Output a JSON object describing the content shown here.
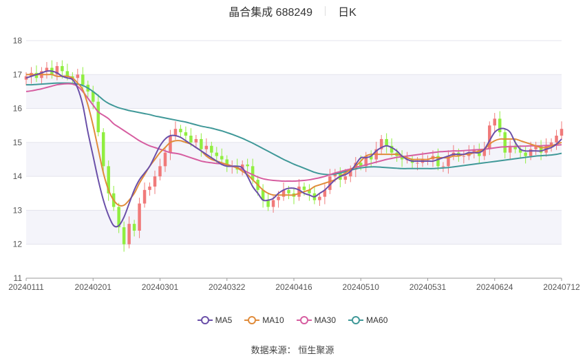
{
  "header": {
    "name": "晶合集成 688249",
    "period": "日K"
  },
  "source_label": "数据来源：",
  "source_value": "恒生聚源",
  "legend": [
    {
      "label": "MA5",
      "color": "#6a4fa8"
    },
    {
      "label": "MA10",
      "color": "#e08b3a"
    },
    {
      "label": "MA30",
      "color": "#d65da0"
    },
    {
      "label": "MA60",
      "color": "#3f9898"
    }
  ],
  "colors": {
    "up": "#f07a7a",
    "down": "#90ee40"
  },
  "chart_data": {
    "type": "candlestick",
    "title": "晶合集成 688249",
    "subtitle": "日K",
    "ylim": [
      11,
      18
    ],
    "yticks": [
      11,
      12,
      13,
      14,
      15,
      16,
      17,
      18
    ],
    "x_tick_labels": [
      "20240111",
      "20240201",
      "20240301",
      "20240322",
      "20240416",
      "20240510",
      "20240531",
      "20240624",
      "20240712"
    ],
    "grid": true,
    "legend_position": "bottom",
    "close": [
      16.95,
      17.05,
      16.9,
      17.1,
      17.2,
      17.0,
      17.25,
      17.1,
      16.95,
      16.9,
      17.0,
      16.7,
      16.5,
      16.2,
      15.3,
      14.3,
      13.5,
      13.1,
      12.5,
      12.0,
      12.6,
      12.4,
      13.2,
      13.6,
      13.7,
      14.0,
      14.3,
      14.7,
      15.2,
      15.4,
      15.3,
      15.2,
      15.0,
      15.1,
      14.8,
      14.9,
      14.7,
      14.6,
      14.5,
      14.3,
      14.3,
      14.2,
      14.35,
      14.3,
      13.9,
      13.6,
      13.3,
      13.1,
      13.3,
      13.4,
      13.6,
      13.5,
      13.4,
      13.7,
      13.6,
      13.5,
      13.3,
      13.4,
      13.6,
      14.0,
      14.1,
      13.9,
      14.0,
      14.2,
      14.4,
      14.3,
      14.6,
      14.5,
      14.8,
      15.1,
      14.9,
      14.7,
      14.6,
      14.5,
      14.5,
      14.4,
      14.4,
      14.5,
      14.5,
      14.6,
      14.3,
      14.3,
      14.6,
      14.7,
      14.6,
      14.6,
      14.7,
      14.8,
      14.6,
      14.8,
      15.5,
      15.7,
      15.3,
      14.7,
      14.9,
      14.8,
      14.7,
      14.6,
      14.8,
      14.9,
      14.7,
      14.9,
      15.0,
      15.2,
      15.4
    ],
    "ma_series": [
      {
        "name": "MA5",
        "values": [
          16.9,
          16.95,
          17.0,
          17.05,
          17.1,
          17.1,
          17.05,
          16.95,
          16.9,
          16.85,
          16.6,
          16.1,
          15.3,
          14.6,
          13.9,
          13.3,
          12.85,
          12.55,
          12.55,
          12.8,
          13.2,
          13.6,
          13.9,
          14.1,
          14.3,
          14.6,
          14.9,
          15.1,
          15.2,
          15.2,
          15.15,
          15.05,
          14.95,
          14.85,
          14.75,
          14.65,
          14.55,
          14.45,
          14.35,
          14.3,
          14.3,
          14.3,
          14.25,
          14.0,
          13.7,
          13.5,
          13.3,
          13.3,
          13.35,
          13.5,
          13.6,
          13.65,
          13.65,
          13.6,
          13.5,
          13.45,
          13.4,
          13.5,
          13.6,
          13.75,
          13.9,
          14.0,
          14.05,
          14.15,
          14.35,
          14.55,
          14.55,
          14.6,
          14.75,
          14.85,
          14.9,
          14.85,
          14.75,
          14.6,
          14.5,
          14.45,
          14.45,
          14.45,
          14.45,
          14.45,
          14.5,
          14.55,
          14.6,
          14.65,
          14.65,
          14.65,
          14.7,
          14.7,
          14.7,
          14.8,
          15.05,
          15.3,
          15.4,
          15.4,
          15.3,
          15.0,
          14.8,
          14.75,
          14.75,
          14.75,
          14.75,
          14.8,
          14.85,
          14.95,
          15.1
        ]
      },
      {
        "name": "MA10",
        "values": [
          17.0,
          17.0,
          17.0,
          17.0,
          17.0,
          17.0,
          16.95,
          16.95,
          16.95,
          16.9,
          16.75,
          16.55,
          16.1,
          15.5,
          14.8,
          14.1,
          13.6,
          13.3,
          13.15,
          13.15,
          13.3,
          13.5,
          13.8,
          14.05,
          14.3,
          14.5,
          14.7,
          14.85,
          15.0,
          15.05,
          15.05,
          15.0,
          14.95,
          14.85,
          14.75,
          14.6,
          14.5,
          14.45,
          14.4,
          14.35,
          14.3,
          14.25,
          14.15,
          14.05,
          13.9,
          13.75,
          13.6,
          13.5,
          13.45,
          13.45,
          13.45,
          13.45,
          13.45,
          13.5,
          13.55,
          13.6,
          13.7,
          13.75,
          13.8,
          13.85,
          13.9,
          14.0,
          14.1,
          14.2,
          14.3,
          14.45,
          14.6,
          14.65,
          14.65,
          14.65,
          14.65,
          14.65,
          14.65,
          14.6,
          14.55,
          14.5,
          14.5,
          14.5,
          14.5,
          14.55,
          14.55,
          14.55,
          14.55,
          14.6,
          14.6,
          14.65,
          14.65,
          14.7,
          14.75,
          14.8,
          14.95,
          15.05,
          15.1,
          15.1,
          15.1,
          15.1,
          15.05,
          15.0,
          14.95,
          14.9,
          14.85,
          14.85,
          14.9,
          14.95,
          15.0
        ]
      },
      {
        "name": "MA30",
        "values": [
          16.5,
          16.52,
          16.55,
          16.58,
          16.62,
          16.66,
          16.7,
          16.72,
          16.73,
          16.72,
          16.65,
          16.5,
          16.3,
          16.1,
          15.9,
          15.8,
          15.7,
          15.55,
          15.45,
          15.35,
          15.25,
          15.15,
          15.05,
          14.97,
          14.9,
          14.85,
          14.8,
          14.75,
          14.7,
          14.68,
          14.65,
          14.6,
          14.55,
          14.5,
          14.45,
          14.42,
          14.4,
          14.38,
          14.37,
          14.35,
          14.3,
          14.25,
          14.2,
          14.12,
          14.05,
          13.98,
          13.93,
          13.9,
          13.88,
          13.87,
          13.86,
          13.86,
          13.86,
          13.87,
          13.88,
          13.9,
          13.93,
          13.96,
          14.0,
          14.05,
          14.1,
          14.14,
          14.18,
          14.22,
          14.27,
          14.3,
          14.34,
          14.38,
          14.42,
          14.46,
          14.5,
          14.53,
          14.56,
          14.58,
          14.6,
          14.62,
          14.64,
          14.66,
          14.68,
          14.7,
          14.72,
          14.73,
          14.74,
          14.75,
          14.75,
          14.76,
          14.77,
          14.78,
          14.79,
          14.8,
          14.82,
          14.84,
          14.86,
          14.87,
          14.88,
          14.88,
          14.89,
          14.89,
          14.9,
          14.9,
          14.9,
          14.91,
          14.91,
          14.92,
          14.93
        ]
      },
      {
        "name": "MA60",
        "values": [
          16.7,
          16.7,
          16.71,
          16.72,
          16.73,
          16.74,
          16.75,
          16.75,
          16.75,
          16.74,
          16.72,
          16.68,
          16.6,
          16.5,
          16.38,
          16.25,
          16.15,
          16.08,
          16.02,
          15.98,
          15.94,
          15.91,
          15.88,
          15.85,
          15.82,
          15.78,
          15.75,
          15.72,
          15.69,
          15.66,
          15.63,
          15.6,
          15.56,
          15.52,
          15.48,
          15.45,
          15.42,
          15.38,
          15.34,
          15.29,
          15.24,
          15.18,
          15.12,
          15.05,
          14.98,
          14.9,
          14.82,
          14.74,
          14.66,
          14.58,
          14.5,
          14.43,
          14.36,
          14.3,
          14.24,
          14.18,
          14.12,
          14.08,
          14.06,
          14.05,
          14.07,
          14.1,
          14.14,
          14.18,
          14.22,
          14.25,
          14.27,
          14.28,
          14.28,
          14.27,
          14.26,
          14.25,
          14.24,
          14.23,
          14.23,
          14.23,
          14.23,
          14.23,
          14.23,
          14.23,
          14.24,
          14.25,
          14.26,
          14.28,
          14.3,
          14.32,
          14.34,
          14.36,
          14.38,
          14.4,
          14.42,
          14.44,
          14.46,
          14.48,
          14.5,
          14.52,
          14.54,
          14.56,
          14.58,
          14.6,
          14.61,
          14.62,
          14.63,
          14.65,
          14.68
        ]
      }
    ]
  }
}
